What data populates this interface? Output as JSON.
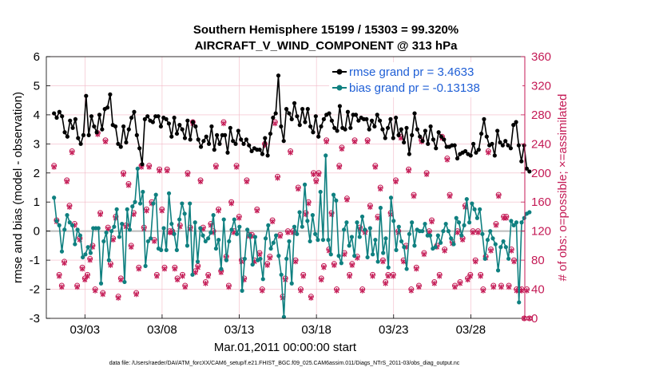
{
  "chart_data": {
    "type": "line",
    "title": "Southern Hemisphere 15199 / 15303 = 99.320%",
    "subtitle": "AIRCRAFT_V_WIND_COMPONENT @ 313 hPa",
    "xlabel": "Mar.01,2011 00:00:00 start",
    "ylabel": "rmse and bias (model - observation)",
    "y2label": "# of obs: o=possible; ×=assimilated",
    "footer": "data file: /Users/raeder/DAI/ATM_forcXX/CAM6_setup/f.e21.FHIST_BGC.f09_025.CAM6assim.011/Diags_NTrS_2011-03/obs_diag_output.nc",
    "xlim": [
      0.5,
      31.5
    ],
    "ylim": [
      -3,
      6
    ],
    "y2lim": [
      0,
      360
    ],
    "x_ticks": [
      {
        "value": 3,
        "label": "03/03"
      },
      {
        "value": 8,
        "label": "03/08"
      },
      {
        "value": 13,
        "label": "03/13"
      },
      {
        "value": 18,
        "label": "03/18"
      },
      {
        "value": 23,
        "label": "03/23"
      },
      {
        "value": 28,
        "label": "03/28"
      }
    ],
    "y_ticks": [
      -3,
      -2,
      -1,
      0,
      1,
      2,
      3,
      4,
      5,
      6
    ],
    "y2_ticks": [
      0,
      40,
      80,
      120,
      160,
      200,
      240,
      280,
      320,
      360
    ],
    "colors": {
      "rmse": "#000000",
      "bias": "#0f8080",
      "obs": "#c41a55",
      "zero": "#bbbbbb",
      "legend_text": "#1f5fd6",
      "grid": "#f2b8c6"
    },
    "series": [
      {
        "name": "rmse grand pr = 3.4633",
        "key": "rmse",
        "values": [
          4.05,
          3.9,
          4.1,
          3.95,
          3.4,
          3.25,
          3.8,
          3.55,
          3.85,
          3.2,
          3.0,
          3.3,
          4.65,
          3.3,
          3.95,
          3.6,
          3.4,
          4.0,
          3.5,
          4.2,
          4.25,
          4.7,
          3.65,
          3.6,
          3.0,
          2.9,
          3.6,
          3.05,
          3.5,
          3.9,
          4.1,
          3.3,
          2.85,
          2.3,
          3.85,
          3.95,
          3.8,
          3.75,
          3.95,
          3.95,
          3.6,
          3.9,
          3.85,
          3.7,
          3.25,
          3.9,
          3.35,
          3.65,
          3.5,
          3.2,
          3.8,
          3.15,
          3.75,
          3.6,
          3.15,
          2.9,
          3.1,
          3.25,
          3.0,
          3.6,
          2.8,
          3.3,
          3.0,
          3.3,
          3.3,
          2.7,
          3.55,
          3.1,
          3.0,
          3.45,
          3.15,
          3.0,
          3.15,
          2.95,
          2.75,
          2.85,
          2.8,
          2.8,
          2.65,
          3.2,
          2.6,
          3.35,
          3.9,
          4.05,
          5.35,
          3.6,
          3.1,
          4.2,
          4.05,
          3.85,
          4.4,
          3.95,
          3.65,
          4.2,
          3.75,
          4.2,
          3.6,
          3.4,
          3.95,
          3.25,
          3.6,
          3.85,
          4.0,
          4.05,
          3.8,
          3.55,
          3.45,
          4.3,
          3.55,
          3.5,
          4.1,
          3.55,
          4.0,
          4.0,
          3.8,
          3.9,
          3.85,
          3.85,
          3.5,
          3.8,
          3.6,
          4.0,
          3.8,
          3.5,
          3.2,
          3.55,
          3.85,
          3.2,
          3.9,
          3.3,
          3.5,
          3.05,
          3.55,
          2.65,
          3.3,
          4.05,
          3.5,
          3.25,
          3.1,
          3.45,
          3.0,
          3.6,
          3.15,
          2.85,
          3.4,
          3.25,
          3.15,
          2.9,
          2.9,
          2.95,
          2.95,
          2.5,
          2.65,
          2.7,
          2.75,
          2.65,
          2.6,
          3.0,
          2.7,
          2.8,
          3.35,
          3.85,
          3.25,
          2.95,
          3.0,
          2.6,
          3.45,
          3.05,
          2.95,
          3.1,
          2.95,
          2.85,
          3.65,
          3.75,
          2.95,
          2.4,
          2.95,
          2.15,
          2.05
        ]
      },
      {
        "name": "bias grand pr = -0.13138",
        "key": "bias",
        "values": [
          1.15,
          0.35,
          0.2,
          -0.7,
          0.05,
          0.55,
          0.3,
          0.2,
          -0.45,
          0.05,
          -0.15,
          -0.9,
          -0.8,
          -0.55,
          -0.75,
          0.1,
          0.1,
          0.1,
          -1.8,
          -0.35,
          -0.05,
          -1.0,
          0.0,
          0.15,
          0.75,
          -0.2,
          0.25,
          -1.75,
          0.75,
          0.05,
          0.85,
          1.0,
          2.15,
          0.95,
          1.35,
          -1.2,
          -0.35,
          -0.25,
          0.95,
          1.25,
          -0.6,
          -0.65,
          0.1,
          -0.65,
          1.3,
          0.25,
          -0.1,
          -0.65,
          0.4,
          0.95,
          0.6,
          -0.5,
          0.95,
          -1.5,
          0.3,
          -1.05,
          0.1,
          -0.15,
          -0.35,
          -0.25,
          -0.05,
          0.55,
          -0.6,
          -0.3,
          -1.3,
          0.4,
          -1.0,
          -0.35,
          0.05,
          0.4,
          -0.1,
          0.15,
          -2.05,
          -0.95,
          0.05,
          -0.15,
          -1.15,
          -0.2,
          -1.0,
          -0.95,
          -1.65,
          -0.25,
          0.2,
          -0.6,
          -0.4,
          -0.15,
          -0.85,
          -1.5,
          -2.95,
          -0.95,
          -0.35,
          -1.8,
          0.15,
          -0.1,
          0.65,
          0.15,
          1.6,
          0.35,
          -0.35,
          0.55,
          -0.1,
          -0.3,
          1.35,
          -0.3,
          2.6,
          -0.3,
          -0.8,
          1.25,
          1.05,
          -0.85,
          -1.1,
          0.05,
          0.3,
          -0.5,
          -0.2,
          -0.85,
          0.3,
          -0.2,
          0.5,
          0.05,
          -0.9,
          0.1,
          -0.8,
          -0.3,
          -1.05,
          0.8,
          -0.75,
          -0.25,
          -1.25,
          1.15,
          0.35,
          -0.65,
          0.15,
          -0.35,
          -0.55,
          -1.3,
          -0.1,
          0.3,
          -0.5,
          0.05,
          0.0,
          0.0,
          0.25,
          -0.15,
          -0.15,
          -0.6,
          -0.55,
          -0.15,
          -0.4,
          0.0,
          0.25,
          0.0,
          -0.25,
          -0.45,
          0.45,
          0.3,
          -0.15,
          0.2,
          1.1,
          0.3,
          0.95,
          0.75,
          0.45,
          0.75,
          -0.1,
          -0.95,
          -0.3,
          0.0,
          -0.25,
          -0.45,
          -1.35,
          -0.55,
          -0.35,
          -0.55,
          -0.95,
          0.35,
          0.2,
          0.3,
          -2.45,
          0.3,
          0.45,
          0.6,
          0.65
        ]
      }
    ],
    "obs_possible": [
      210,
      135,
      60,
      45,
      78,
      190,
      155,
      230,
      130,
      45,
      110,
      70,
      55,
      60,
      82,
      100,
      40,
      255,
      145,
      35,
      245,
      125,
      75,
      110,
      140,
      30,
      55,
      200,
      128,
      185,
      100,
      145,
      35,
      70,
      210,
      125,
      150,
      210,
      160,
      108,
      60,
      205,
      150,
      70,
      205,
      120,
      120,
      70,
      55,
      128,
      60,
      45,
      200,
      125,
      270,
      65,
      72,
      190,
      125,
      50,
      60,
      130,
      120,
      210,
      150,
      65,
      270,
      85,
      45,
      160,
      120,
      210,
      140,
      80,
      55,
      190,
      115,
      115,
      80,
      150,
      90,
      40,
      240,
      75,
      85,
      135,
      270,
      195,
      115,
      30,
      55,
      120,
      230,
      120,
      80,
      180,
      40,
      60,
      145,
      160,
      30,
      200,
      190,
      200,
      55,
      72,
      245,
      95,
      145,
      75,
      40,
      210,
      235,
      90,
      165,
      60,
      75,
      245,
      85,
      125,
      40,
      120,
      245,
      155,
      60,
      210,
      140,
      180,
      80,
      50,
      60,
      145,
      60,
      190,
      120,
      250,
      80,
      100,
      205,
      40,
      170,
      70,
      45,
      245,
      90,
      200,
      120,
      135,
      50,
      100,
      60,
      250,
      95,
      220,
      170,
      105,
      45,
      120,
      50,
      110,
      155,
      55,
      60,
      120,
      80,
      120,
      60,
      40,
      85,
      230,
      95,
      45,
      130,
      170,
      45,
      140,
      140,
      45,
      95,
      80,
      40,
      40,
      40,
      0,
      40,
      0
    ],
    "obs_assimilated": [
      208,
      133,
      58,
      43,
      76,
      188,
      153,
      228,
      128,
      43,
      108,
      68,
      53,
      58,
      80,
      98,
      38,
      253,
      143,
      33,
      243,
      123,
      73,
      108,
      138,
      28,
      53,
      198,
      126,
      183,
      98,
      143,
      33,
      68,
      208,
      123,
      148,
      208,
      158,
      106,
      58,
      203,
      148,
      68,
      203,
      118,
      118,
      68,
      53,
      126,
      58,
      43,
      198,
      123,
      268,
      63,
      70,
      188,
      123,
      48,
      58,
      128,
      118,
      208,
      148,
      63,
      268,
      83,
      43,
      158,
      118,
      208,
      138,
      78,
      53,
      188,
      113,
      113,
      78,
      148,
      88,
      38,
      238,
      73,
      83,
      133,
      268,
      193,
      113,
      28,
      53,
      118,
      228,
      118,
      78,
      178,
      38,
      58,
      143,
      158,
      28,
      198,
      188,
      198,
      53,
      70,
      243,
      93,
      143,
      73,
      38,
      208,
      233,
      88,
      163,
      58,
      73,
      243,
      83,
      123,
      38,
      118,
      243,
      153,
      58,
      208,
      138,
      178,
      78,
      48,
      58,
      143,
      58,
      188,
      118,
      248,
      78,
      98,
      203,
      38,
      168,
      68,
      43,
      243,
      88,
      198,
      118,
      133,
      48,
      98,
      58,
      248,
      93,
      218,
      168,
      103,
      43,
      118,
      48,
      108,
      153,
      53,
      58,
      118,
      78,
      118,
      58,
      38,
      83,
      228,
      93,
      43,
      128,
      168,
      43,
      138,
      138,
      43,
      93,
      78,
      38,
      38,
      38,
      0,
      38,
      0
    ]
  }
}
